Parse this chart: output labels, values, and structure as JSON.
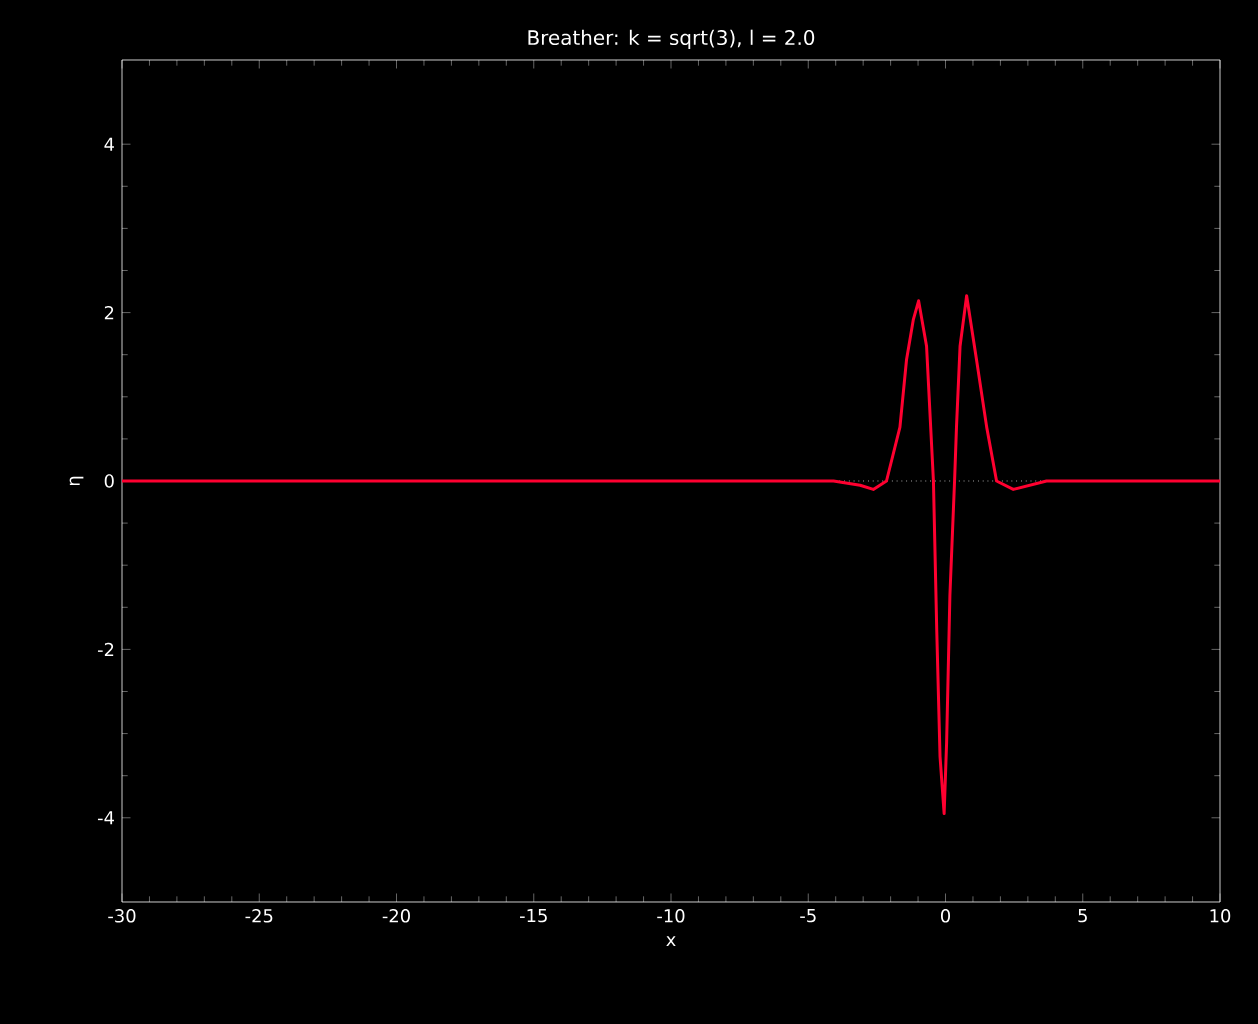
{
  "chart_data": {
    "type": "line",
    "title": "Breather: k = sqrt(3), l = 2.0",
    "xlabel": "x",
    "ylabel": "η",
    "xlim": [
      -30,
      10
    ],
    "ylim": [
      -5,
      5
    ],
    "xticks": [
      -30,
      -25,
      -20,
      -15,
      -10,
      -5,
      0,
      5,
      10
    ],
    "yticks": [
      -4,
      -2,
      0,
      2,
      4
    ],
    "marker": "none",
    "line_style": "solid",
    "ref_lines": [
      {
        "axis": "y",
        "value": 0,
        "color": "#ffffff",
        "line_style": "dotted"
      }
    ],
    "series": [
      {
        "color": "#ff0030",
        "x": [
          -30,
          -4.08,
          -3.11,
          -2.63,
          -2.15,
          -1.66,
          -1.42,
          -1.17,
          -0.98,
          -0.69,
          -0.44,
          -0.32,
          -0.2,
          -0.05,
          0.04,
          0.16,
          0.33,
          0.4,
          0.53,
          0.77,
          1.13,
          1.5,
          1.86,
          2.47,
          3.68,
          10
        ],
        "values": [
          0,
          0,
          -0.05,
          -0.1,
          0,
          0.64,
          1.44,
          1.92,
          2.14,
          1.6,
          0,
          -1.76,
          -3.27,
          -3.95,
          -3.11,
          -1.36,
          0,
          0.64,
          1.6,
          2.2,
          1.44,
          0.64,
          0,
          -0.1,
          0,
          0
        ]
      }
    ]
  }
}
